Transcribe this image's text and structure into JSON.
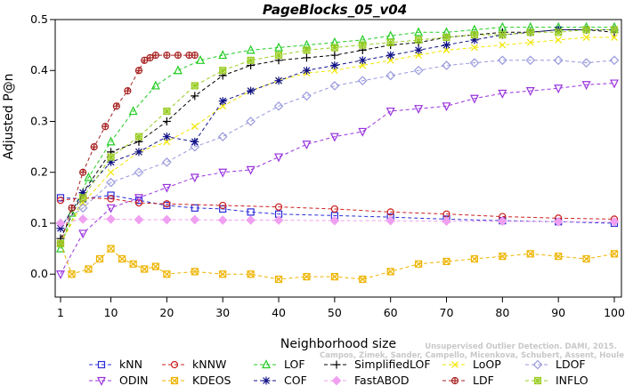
{
  "chart_data": {
    "type": "line",
    "title": "PageBlocks_05_v04",
    "xlabel": "Neighborhood size",
    "ylabel": "Adjusted P@n",
    "xlim": [
      1,
      100
    ],
    "ylim": [
      -0.045,
      0.5
    ],
    "xticks": [
      1,
      10,
      20,
      30,
      40,
      50,
      60,
      70,
      80,
      90,
      100
    ],
    "yticks": [
      0.0,
      0.1,
      0.2,
      0.3,
      0.4,
      0.5
    ],
    "ytick_labels": [
      "0.0",
      "0.1",
      "0.2",
      "0.3",
      "0.4",
      "0.5"
    ],
    "grid": false,
    "legend_position": "bottom",
    "watermark_lines": [
      "Unsupervised Outlier Detection. DAMI, 2015.",
      "Campos, Zimek, Sander, Campello, Micenkova, Schubert, Assent, Houle"
    ],
    "series": [
      {
        "name": "kNN",
        "color": "#2b2bd9",
        "marker": "square",
        "x": [
          1,
          5,
          10,
          15,
          20,
          25,
          30,
          35,
          40,
          50,
          60,
          70,
          80,
          90,
          100
        ],
        "y": [
          0.15,
          0.148,
          0.155,
          0.145,
          0.135,
          0.13,
          0.128,
          0.122,
          0.118,
          0.115,
          0.112,
          0.108,
          0.105,
          0.103,
          0.1
        ]
      },
      {
        "name": "kNNW",
        "color": "#cc1f1f",
        "marker": "circle",
        "x": [
          1,
          5,
          10,
          15,
          20,
          30,
          40,
          50,
          60,
          70,
          80,
          90,
          100
        ],
        "y": [
          0.145,
          0.15,
          0.148,
          0.14,
          0.138,
          0.135,
          0.132,
          0.128,
          0.122,
          0.118,
          0.113,
          0.11,
          0.108
        ]
      },
      {
        "name": "LOF",
        "color": "#22cc22",
        "marker": "triangle-up",
        "x": [
          1,
          3,
          6,
          10,
          14,
          18,
          22,
          26,
          30,
          35,
          40,
          45,
          50,
          55,
          60,
          65,
          70,
          75,
          80,
          85,
          90,
          95,
          100
        ],
        "y": [
          0.05,
          0.12,
          0.19,
          0.26,
          0.32,
          0.37,
          0.4,
          0.42,
          0.43,
          0.44,
          0.445,
          0.45,
          0.455,
          0.46,
          0.468,
          0.475,
          0.475,
          0.48,
          0.485,
          0.485,
          0.485,
          0.485,
          0.485
        ]
      },
      {
        "name": "SimplifiedLOF",
        "color": "#000000",
        "marker": "plus",
        "x": [
          1,
          5,
          10,
          15,
          20,
          25,
          30,
          35,
          40,
          45,
          50,
          55,
          60,
          65,
          70,
          75,
          80,
          85,
          90,
          95,
          100
        ],
        "y": [
          0.07,
          0.16,
          0.24,
          0.26,
          0.3,
          0.35,
          0.39,
          0.41,
          0.42,
          0.425,
          0.43,
          0.44,
          0.45,
          0.455,
          0.465,
          0.47,
          0.475,
          0.475,
          0.48,
          0.48,
          0.475
        ]
      },
      {
        "name": "LoOP",
        "color": "#f2e600",
        "marker": "cross",
        "x": [
          1,
          5,
          10,
          15,
          20,
          25,
          30,
          35,
          40,
          45,
          50,
          55,
          60,
          65,
          70,
          75,
          80,
          85,
          90,
          95,
          100
        ],
        "y": [
          0.06,
          0.14,
          0.2,
          0.24,
          0.26,
          0.29,
          0.33,
          0.36,
          0.38,
          0.395,
          0.4,
          0.41,
          0.42,
          0.43,
          0.44,
          0.445,
          0.45,
          0.455,
          0.46,
          0.465,
          0.465
        ]
      },
      {
        "name": "LDOF",
        "color": "#9999dd",
        "marker": "diamond",
        "x": [
          1,
          5,
          10,
          15,
          20,
          25,
          30,
          35,
          40,
          45,
          50,
          55,
          60,
          65,
          70,
          75,
          80,
          85,
          90,
          95,
          100
        ],
        "y": [
          0.1,
          0.13,
          0.18,
          0.2,
          0.22,
          0.25,
          0.27,
          0.3,
          0.33,
          0.35,
          0.37,
          0.38,
          0.39,
          0.4,
          0.41,
          0.415,
          0.42,
          0.42,
          0.42,
          0.415,
          0.42
        ]
      },
      {
        "name": "ODIN",
        "color": "#9933dd",
        "marker": "triangle-down",
        "x": [
          1,
          5,
          10,
          15,
          20,
          25,
          30,
          35,
          40,
          45,
          50,
          55,
          60,
          65,
          70,
          75,
          80,
          85,
          90,
          95,
          100
        ],
        "y": [
          0.0,
          0.08,
          0.13,
          0.15,
          0.17,
          0.19,
          0.2,
          0.205,
          0.23,
          0.255,
          0.27,
          0.28,
          0.32,
          0.325,
          0.33,
          0.345,
          0.355,
          0.36,
          0.365,
          0.372,
          0.375
        ]
      },
      {
        "name": "KDEOS",
        "color": "#eeb400",
        "marker": "square-x",
        "x": [
          1,
          3,
          6,
          8,
          10,
          12,
          14,
          16,
          18,
          20,
          25,
          30,
          35,
          40,
          45,
          50,
          55,
          60,
          65,
          70,
          75,
          80,
          85,
          90,
          95,
          100
        ],
        "y": [
          0.06,
          0.0,
          0.01,
          0.03,
          0.05,
          0.03,
          0.02,
          0.01,
          0.015,
          0.0,
          0.005,
          0.0,
          0.0,
          -0.01,
          -0.005,
          -0.005,
          -0.01,
          0.005,
          0.02,
          0.025,
          0.03,
          0.035,
          0.04,
          0.035,
          0.03,
          0.04
        ]
      },
      {
        "name": "COF",
        "color": "#111188",
        "marker": "asterisk",
        "x": [
          1,
          5,
          10,
          15,
          20,
          25,
          30,
          35,
          40,
          45,
          50,
          55,
          60,
          65,
          70,
          75,
          80,
          85,
          90,
          95,
          100
        ],
        "y": [
          0.09,
          0.16,
          0.22,
          0.24,
          0.27,
          0.26,
          0.34,
          0.36,
          0.38,
          0.4,
          0.41,
          0.42,
          0.43,
          0.44,
          0.45,
          0.46,
          0.47,
          0.475,
          0.48,
          0.48,
          0.48
        ]
      },
      {
        "name": "FastABOD",
        "color": "#f0a0f0",
        "marker": "diamond-filled",
        "x": [
          1,
          5,
          10,
          15,
          20,
          25,
          30,
          35,
          40,
          50,
          60,
          70,
          80,
          90,
          100
        ],
        "y": [
          0.1,
          0.108,
          0.108,
          0.107,
          0.107,
          0.107,
          0.106,
          0.106,
          0.106,
          0.105,
          0.105,
          0.104,
          0.104,
          0.103,
          0.103
        ]
      },
      {
        "name": "LDF",
        "color": "#a82020",
        "marker": "circle-plus",
        "x": [
          1,
          3,
          5,
          7,
          9,
          11,
          13,
          15,
          16,
          17,
          18,
          20,
          22,
          24,
          25
        ],
        "y": [
          0.06,
          0.13,
          0.2,
          0.25,
          0.29,
          0.33,
          0.36,
          0.4,
          0.42,
          0.425,
          0.43,
          0.43,
          0.43,
          0.43,
          0.43
        ]
      },
      {
        "name": "INFLO",
        "color": "#99cc22",
        "marker": "square-star",
        "x": [
          1,
          5,
          10,
          15,
          20,
          25,
          30,
          35,
          40,
          45,
          50,
          55,
          60,
          65,
          70,
          75,
          80,
          85,
          90,
          95,
          100
        ],
        "y": [
          0.06,
          0.15,
          0.23,
          0.27,
          0.32,
          0.37,
          0.4,
          0.42,
          0.43,
          0.44,
          0.445,
          0.45,
          0.455,
          0.46,
          0.465,
          0.47,
          0.47,
          0.475,
          0.475,
          0.48,
          0.48
        ]
      }
    ]
  }
}
